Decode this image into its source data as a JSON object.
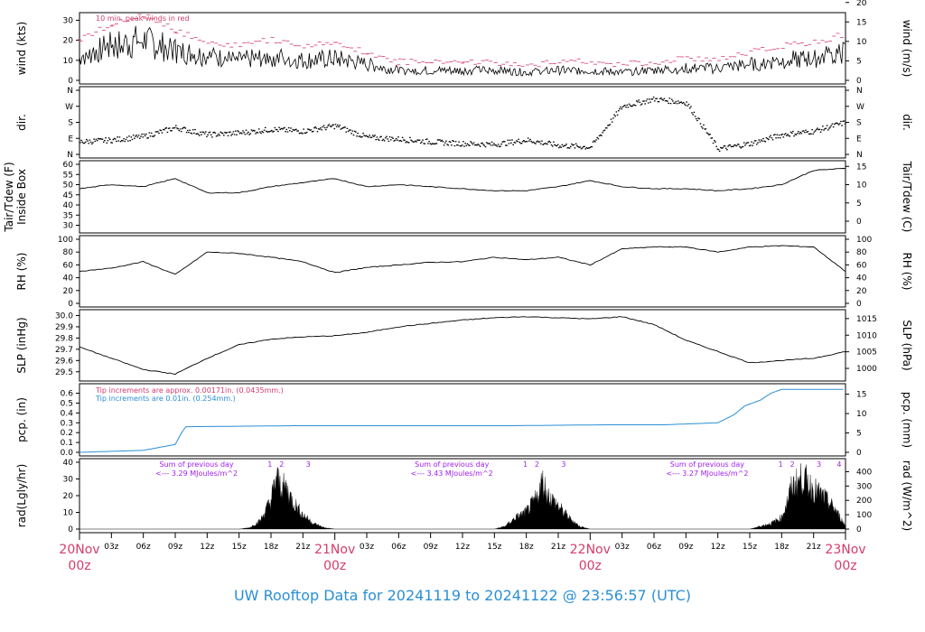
{
  "title": "UW Rooftop Data for 20241119  to  20241122 @ 23:56:57  (UTC)",
  "colors": {
    "title": "#2a8fd6",
    "peak": "#d43c6b",
    "pcp_small": "#d43c6b",
    "pcp_big": "#2a8fd6",
    "sum": "#a021ef",
    "day": "#d43c6b"
  },
  "x_axis": {
    "day_labels": [
      {
        "top": "20Nov",
        "bottom": "00z",
        "hour": 0
      },
      {
        "top": "21Nov",
        "bottom": "00z",
        "hour": 24
      },
      {
        "top": "22Nov",
        "bottom": "00z",
        "hour": 48
      },
      {
        "top": "23Nov",
        "bottom": "00z",
        "hour": 72
      }
    ],
    "hour_labels": [
      "03z",
      "06z",
      "09z",
      "12z",
      "15z",
      "18z",
      "21z",
      "03z",
      "06z",
      "09z",
      "12z",
      "15z",
      "18z",
      "21z",
      "03z",
      "06z",
      "09z",
      "12z",
      "15z",
      "18z",
      "21z"
    ],
    "hour_positions": [
      3,
      6,
      9,
      12,
      15,
      18,
      21,
      27,
      30,
      33,
      36,
      39,
      42,
      45,
      51,
      54,
      57,
      60,
      63,
      66,
      69
    ],
    "range_hours": [
      0,
      72
    ]
  },
  "panels": {
    "wind": {
      "left_label": "wind (kts)",
      "right_label": "wind (m/s)",
      "left_ticks": [
        "0",
        "10",
        "20",
        "30"
      ],
      "right_ticks": [
        "0",
        "5",
        "10",
        "15",
        "20"
      ],
      "note": "10 min. peak winds in red"
    },
    "dir": {
      "left_label": "dir.",
      "right_label": "dir.",
      "ticks": [
        "N",
        "E",
        "S",
        "W",
        "N"
      ]
    },
    "temp": {
      "left_label": "Tair/Tdew (F)",
      "left_label2": "Inside Box",
      "right_label": "Tair/Tdew (C)",
      "left_ticks": [
        "30",
        "35",
        "40",
        "45",
        "50",
        "55",
        "60"
      ],
      "right_ticks": [
        "0",
        "5",
        "10",
        "15"
      ]
    },
    "rh": {
      "left_label": "RH (%)",
      "right_label": "RH (%)",
      "ticks": [
        "0",
        "20",
        "40",
        "60",
        "80",
        "100"
      ]
    },
    "slp": {
      "left_label": "SLP (inHg)",
      "right_label": "SLP (hPa)",
      "left_ticks": [
        "29.5",
        "29.6",
        "29.7",
        "29.8",
        "29.9",
        "30.0"
      ],
      "right_ticks": [
        "1000",
        "1005",
        "1010",
        "1015"
      ]
    },
    "pcp": {
      "left_label": "pcp. (in)",
      "right_label": "pcp. (mm)",
      "left_ticks": [
        "0.0",
        "0.1",
        "0.2",
        "0.3",
        "0.4",
        "0.5",
        "0.6"
      ],
      "right_ticks": [
        "0",
        "5",
        "10",
        "15"
      ],
      "note1": "Tip increments are approx. 0.00171in. (0.0435mm.)",
      "note2": "Tip increments are 0.01in. (0.254mm.)"
    },
    "rad": {
      "left_label": "rad(Lgly/hr)",
      "right_label": "rad (W/m^2)",
      "left_ticks": [
        "0",
        "10",
        "20",
        "30",
        "40"
      ],
      "right_ticks": [
        "0",
        "100",
        "200",
        "300",
        "400"
      ],
      "sums": [
        {
          "line1": "Sum of previous day",
          "line2": "<--- 3.29 MJoules/m^2",
          "hour": 11
        },
        {
          "line1": "Sum of previous day",
          "line2": "<--- 3.43 MJoules/m^2",
          "hour": 35
        },
        {
          "line1": "Sum of previous day",
          "line2": "<--- 3.27 MJoules/m^2",
          "hour": 59
        }
      ],
      "markers": [
        {
          "text": "1",
          "hour": 17.9
        },
        {
          "text": "2",
          "hour": 19
        },
        {
          "text": "3",
          "hour": 21.5
        },
        {
          "text": "1",
          "hour": 41.9
        },
        {
          "text": "2",
          "hour": 43
        },
        {
          "text": "3",
          "hour": 45.5
        },
        {
          "text": "1",
          "hour": 65.9
        },
        {
          "text": "2",
          "hour": 67
        },
        {
          "text": "3",
          "hour": 69.5
        },
        {
          "text": "4",
          "hour": 71.4
        }
      ]
    }
  },
  "chart_data": [
    {
      "type": "line",
      "panel": "wind",
      "ylabel": "wind (kts)",
      "ylim": [
        0,
        32
      ],
      "x_hours": [
        0,
        3,
        6,
        9,
        12,
        15,
        18,
        21,
        24,
        27,
        30,
        33,
        36,
        39,
        42,
        45,
        48,
        51,
        54,
        57,
        60,
        63,
        66,
        69,
        72
      ],
      "series": [
        {
          "name": "wind",
          "values": [
            12,
            17,
            20,
            15,
            12,
            10,
            12,
            10,
            11,
            8,
            5,
            5,
            5,
            5,
            4,
            5,
            5,
            4,
            5,
            6,
            6,
            8,
            10,
            11,
            14
          ]
        }
      ]
    },
    {
      "type": "scatter",
      "panel": "dir",
      "ylabel": "dir.",
      "x_hours": [
        0,
        3,
        6,
        9,
        12,
        15,
        18,
        21,
        24,
        27,
        30,
        33,
        36,
        39,
        42,
        45,
        48,
        51,
        54,
        57,
        60,
        63,
        66,
        69,
        72
      ],
      "values": [
        70,
        80,
        100,
        150,
        110,
        120,
        140,
        130,
        160,
        95,
        85,
        70,
        60,
        55,
        80,
        50,
        40,
        270,
        310,
        290,
        30,
        60,
        110,
        130,
        180
      ]
    },
    {
      "type": "line",
      "panel": "temp",
      "ylabel": "Tair/Tdew (F)",
      "ylim": [
        28,
        60
      ],
      "x_hours": [
        0,
        3,
        6,
        9,
        12,
        15,
        18,
        21,
        24,
        27,
        30,
        33,
        36,
        39,
        42,
        45,
        48,
        51,
        54,
        57,
        60,
        63,
        66,
        69,
        72
      ],
      "series": [
        {
          "name": "temp",
          "values": [
            48,
            50,
            49,
            53,
            46,
            46,
            49,
            51,
            53,
            49,
            50,
            49,
            48,
            47,
            47,
            49,
            52,
            49,
            48,
            48,
            47,
            48,
            50,
            57,
            58
          ]
        }
      ]
    },
    {
      "type": "line",
      "panel": "rh",
      "ylabel": "RH (%)",
      "ylim": [
        0,
        100
      ],
      "x_hours": [
        0,
        3,
        6,
        9,
        12,
        15,
        18,
        21,
        24,
        27,
        30,
        33,
        36,
        39,
        42,
        45,
        48,
        51,
        54,
        57,
        60,
        63,
        66,
        69,
        72
      ],
      "series": [
        {
          "name": "rh",
          "values": [
            50,
            55,
            65,
            45,
            80,
            78,
            72,
            65,
            48,
            56,
            60,
            64,
            65,
            72,
            68,
            72,
            60,
            85,
            88,
            88,
            80,
            88,
            90,
            88,
            50
          ]
        }
      ]
    },
    {
      "type": "line",
      "panel": "slp",
      "ylabel": "SLP (inHg)",
      "ylim": [
        29.45,
        30.02
      ],
      "x_hours": [
        0,
        3,
        6,
        9,
        12,
        15,
        18,
        21,
        24,
        27,
        30,
        33,
        36,
        39,
        42,
        45,
        48,
        51,
        54,
        57,
        60,
        63,
        66,
        69,
        72
      ],
      "series": [
        {
          "name": "slp",
          "values": [
            29.72,
            29.62,
            29.52,
            29.48,
            29.62,
            29.74,
            29.79,
            29.81,
            29.82,
            29.85,
            29.9,
            29.93,
            29.96,
            29.98,
            29.99,
            29.98,
            29.97,
            29.99,
            29.92,
            29.78,
            29.68,
            29.58,
            29.6,
            29.62,
            29.68
          ]
        }
      ]
    },
    {
      "type": "line",
      "panel": "pcp",
      "ylabel": "pcp. (in)",
      "ylim": [
        0,
        0.66
      ],
      "x_hours": [
        0,
        6,
        9,
        9.6,
        10,
        20,
        30,
        40,
        50,
        55,
        60,
        61.5,
        62.5,
        64,
        65,
        66,
        72
      ],
      "series": [
        {
          "name": "pcp",
          "values": [
            0,
            0.02,
            0.08,
            0.2,
            0.26,
            0.27,
            0.27,
            0.27,
            0.28,
            0.28,
            0.3,
            0.38,
            0.47,
            0.53,
            0.6,
            0.64,
            0.64
          ]
        }
      ]
    },
    {
      "type": "area",
      "panel": "rad",
      "ylabel": "rad(Lgly/hr)",
      "ylim": [
        0,
        40
      ],
      "x_hours": [
        0,
        15,
        16,
        17,
        18,
        18.5,
        19,
        19.5,
        20,
        21,
        22,
        23,
        24,
        39,
        40,
        41,
        42,
        43,
        43.5,
        44,
        45,
        46,
        47,
        48,
        63,
        64,
        65,
        66,
        67,
        68,
        69,
        70,
        71,
        72
      ],
      "series": [
        {
          "name": "rad",
          "values": [
            0,
            0,
            1,
            6,
            20,
            36,
            30,
            28,
            20,
            10,
            4,
            1,
            0,
            0,
            2,
            8,
            12,
            22,
            34,
            24,
            16,
            8,
            2,
            0,
            0,
            2,
            4,
            8,
            30,
            36,
            28,
            22,
            14,
            2
          ]
        }
      ]
    }
  ]
}
